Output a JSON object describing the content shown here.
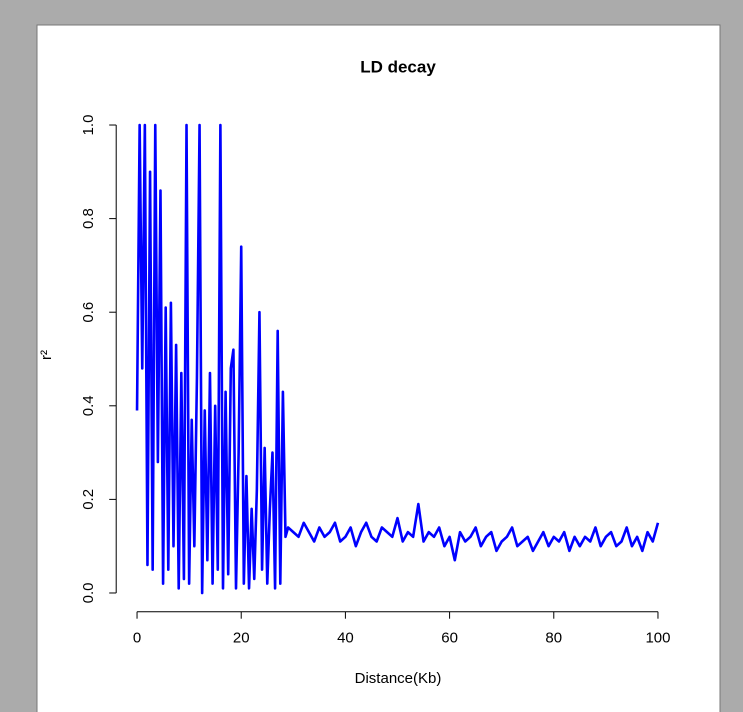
{
  "chart_data": {
    "type": "line",
    "title": "LD decay",
    "x_label": "Distance(Kb)",
    "y_label": "r²",
    "x": [
      0,
      0.5,
      1,
      1.5,
      2,
      2.5,
      3,
      3.5,
      4,
      4.5,
      5,
      5.5,
      6,
      6.5,
      7,
      7.5,
      8,
      8.5,
      9,
      9.5,
      10,
      10.5,
      11,
      11.5,
      12,
      12.5,
      13,
      13.5,
      14,
      14.5,
      15,
      15.5,
      16,
      16.5,
      17,
      17.5,
      18,
      18.5,
      19,
      19.5,
      20,
      20.5,
      21,
      21.5,
      22,
      22.5,
      23,
      23.5,
      24,
      24.5,
      25,
      25.5,
      26,
      26.5,
      27,
      27.5,
      28,
      28.5,
      29,
      30,
      31,
      32,
      33,
      34,
      35,
      36,
      37,
      38,
      39,
      40,
      41,
      42,
      43,
      44,
      45,
      46,
      47,
      48,
      49,
      50,
      51,
      52,
      53,
      54,
      55,
      56,
      57,
      58,
      59,
      60,
      61,
      62,
      63,
      64,
      65,
      66,
      67,
      68,
      69,
      70,
      71,
      72,
      73,
      74,
      75,
      76,
      77,
      78,
      79,
      80,
      81,
      82,
      83,
      84,
      85,
      86,
      87,
      88,
      89,
      90,
      91,
      92,
      93,
      94,
      95,
      96,
      97,
      98,
      99,
      100
    ],
    "series": [
      {
        "name": "r2",
        "color": "#0000ff",
        "values": [
          0.39,
          1.0,
          0.48,
          1.0,
          0.06,
          0.9,
          0.05,
          1.0,
          0.28,
          0.86,
          0.02,
          0.61,
          0.05,
          0.62,
          0.1,
          0.53,
          0.01,
          0.47,
          0.03,
          1.0,
          0.02,
          0.37,
          0.1,
          0.46,
          1.0,
          0.0,
          0.39,
          0.07,
          0.47,
          0.02,
          0.4,
          0.05,
          1.0,
          0.01,
          0.43,
          0.04,
          0.48,
          0.52,
          0.01,
          0.3,
          0.74,
          0.02,
          0.25,
          0.01,
          0.18,
          0.03,
          0.22,
          0.6,
          0.05,
          0.31,
          0.02,
          0.18,
          0.3,
          0.01,
          0.56,
          0.02,
          0.43,
          0.12,
          0.14,
          0.13,
          0.12,
          0.15,
          0.13,
          0.11,
          0.14,
          0.12,
          0.13,
          0.15,
          0.11,
          0.12,
          0.14,
          0.1,
          0.13,
          0.15,
          0.12,
          0.11,
          0.14,
          0.13,
          0.12,
          0.16,
          0.11,
          0.13,
          0.12,
          0.19,
          0.11,
          0.13,
          0.12,
          0.14,
          0.1,
          0.12,
          0.07,
          0.13,
          0.11,
          0.12,
          0.14,
          0.1,
          0.12,
          0.13,
          0.09,
          0.11,
          0.12,
          0.14,
          0.1,
          0.11,
          0.12,
          0.09,
          0.11,
          0.13,
          0.1,
          0.12,
          0.11,
          0.13,
          0.09,
          0.12,
          0.1,
          0.12,
          0.11,
          0.14,
          0.1,
          0.12,
          0.13,
          0.1,
          0.11,
          0.14,
          0.1,
          0.12,
          0.09,
          0.13,
          0.11,
          0.15
        ]
      }
    ],
    "xlim": [
      -4,
      104
    ],
    "ylim": [
      -0.04,
      1.04
    ],
    "xticks": [
      0,
      20,
      40,
      60,
      80,
      100
    ],
    "yticks": [
      {
        "value": 0,
        "label": "0.0"
      },
      0.2,
      0.4,
      0.6,
      0.8,
      {
        "value": 1,
        "label": "1.0"
      }
    ]
  }
}
